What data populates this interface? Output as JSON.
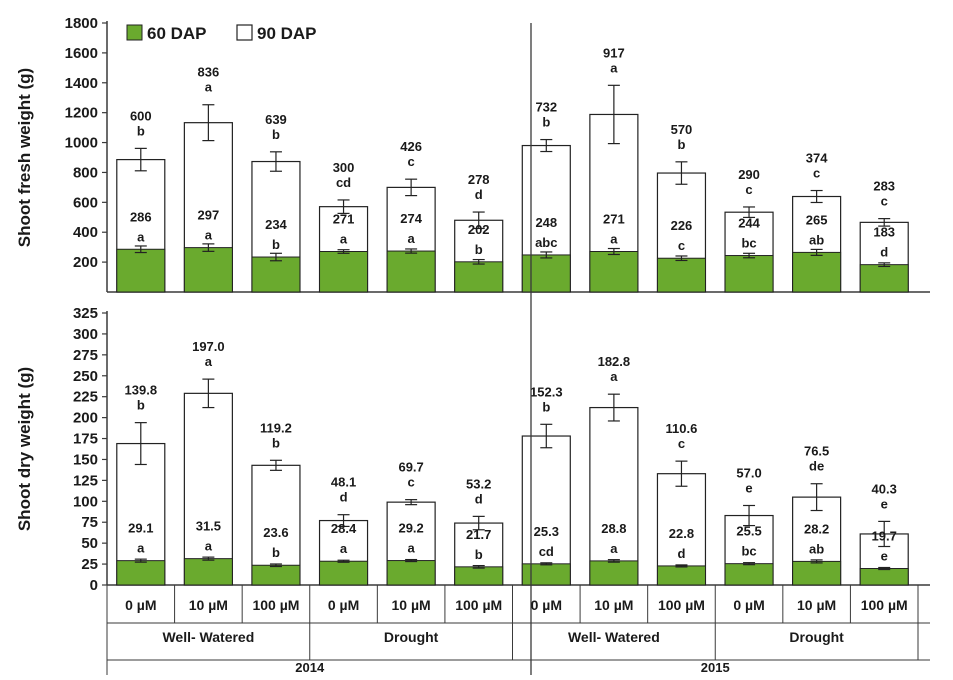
{
  "chart_data": [
    {
      "type": "bar",
      "stacked": true,
      "ylabel": "Shoot fresh weight (g)",
      "ylim": [
        0,
        1800
      ],
      "yticks": [
        200,
        400,
        600,
        800,
        1000,
        1200,
        1400,
        1600,
        1800
      ],
      "legend": {
        "placement": "top-left",
        "items": [
          {
            "name": "60 DAP",
            "color": "#6aaa2e"
          },
          {
            "name": "90 DAP",
            "color": "#ffffff"
          }
        ]
      },
      "categories": [
        "0 µM",
        "10 µM",
        "100 µM",
        "0 µM",
        "10 µM",
        "100 µM",
        "0 µM",
        "10 µM",
        "100 µM",
        "0 µM",
        "10 µM",
        "100 µM"
      ],
      "series": [
        {
          "name": "60 DAP",
          "values": [
            286,
            297,
            234,
            271,
            274,
            202,
            248,
            271,
            226,
            244,
            265,
            183
          ],
          "errors": [
            22,
            25,
            25,
            12,
            14,
            15,
            20,
            20,
            15,
            15,
            20,
            12
          ],
          "value_labels": [
            "286",
            "297",
            "234",
            "271",
            "274",
            "202",
            "248",
            "271",
            "226",
            "244",
            "265",
            "183"
          ],
          "letters": [
            "a",
            "a",
            "b",
            "a",
            "a",
            "b",
            "abc",
            "a",
            "c",
            "bc",
            "ab",
            "d"
          ]
        },
        {
          "name": "90 DAP",
          "values": [
            600,
            836,
            639,
            300,
            426,
            278,
            732,
            917,
            570,
            290,
            374,
            283
          ],
          "totals": [
            886,
            1133,
            873,
            571,
            700,
            480,
            980,
            1188,
            796,
            534,
            639,
            466
          ],
          "errors": [
            75,
            120,
            65,
            45,
            55,
            55,
            40,
            195,
            75,
            35,
            40,
            25
          ],
          "value_labels": [
            "600",
            "836",
            "639",
            "300",
            "426",
            "278",
            "732",
            "917",
            "570",
            "290",
            "374",
            "283"
          ],
          "letters": [
            "b",
            "a",
            "b",
            "cd",
            "c",
            "d",
            "b",
            "a",
            "b",
            "c",
            "c",
            "c"
          ]
        }
      ]
    },
    {
      "type": "bar",
      "stacked": true,
      "ylabel": "Shoot dry weight (g)",
      "ylim": [
        0,
        325
      ],
      "yticks": [
        0,
        25,
        50,
        75,
        100,
        125,
        150,
        175,
        200,
        225,
        250,
        275,
        300,
        325
      ],
      "categories": [
        "0 µM",
        "10 µM",
        "100 µM",
        "0 µM",
        "10 µM",
        "100 µM",
        "0 µM",
        "10 µM",
        "100 µM",
        "0 µM",
        "10 µM",
        "100 µM"
      ],
      "series": [
        {
          "name": "60 DAP",
          "values": [
            29.1,
            31.5,
            23.6,
            28.4,
            29.2,
            21.7,
            25.3,
            28.8,
            22.8,
            25.5,
            28.2,
            19.7
          ],
          "errors": [
            1.8,
            1.8,
            1.5,
            1.2,
            1.2,
            1.5,
            1.2,
            1.5,
            1.2,
            1.2,
            1.8,
            1.2
          ],
          "value_labels": [
            "29.1",
            "31.5",
            "23.6",
            "28.4",
            "29.2",
            "21.7",
            "25.3",
            "28.8",
            "22.8",
            "25.5",
            "28.2",
            "19.7"
          ],
          "letters": [
            "a",
            "a",
            "b",
            "a",
            "a",
            "b",
            "cd",
            "a",
            "d",
            "bc",
            "ab",
            "e"
          ]
        },
        {
          "name": "90 DAP",
          "values": [
            139.8,
            197.0,
            119.2,
            48.1,
            69.7,
            53.2,
            152.3,
            182.8,
            110.6,
            57.0,
            76.5,
            40.3
          ],
          "totals": [
            169,
            229,
            143,
            77,
            99,
            74,
            178,
            212,
            133,
            83,
            105,
            61
          ],
          "errors": [
            25,
            17,
            6,
            7,
            3,
            8,
            14,
            16,
            15,
            12,
            16,
            15
          ],
          "value_labels": [
            "139.8",
            "197.0",
            "119.2",
            "48.1",
            "69.7",
            "53.2",
            "152.3",
            "182.8",
            "110.6",
            "57.0",
            "76.5",
            "40.3"
          ],
          "letters": [
            "b",
            "a",
            "b",
            "d",
            "c",
            "d",
            "b",
            "a",
            "c",
            "e",
            "de",
            "e"
          ]
        }
      ]
    }
  ],
  "x_groups": [
    {
      "label": "Well- Watered"
    },
    {
      "label": "Drought"
    },
    {
      "label": "Well- Watered"
    },
    {
      "label": "Drought"
    }
  ],
  "x_years": [
    {
      "label": "2014"
    },
    {
      "label": "2015"
    }
  ],
  "colors": {
    "bar60": "#6aaa2e",
    "bar90": "#ffffff",
    "axis": "#3a3a3a"
  }
}
